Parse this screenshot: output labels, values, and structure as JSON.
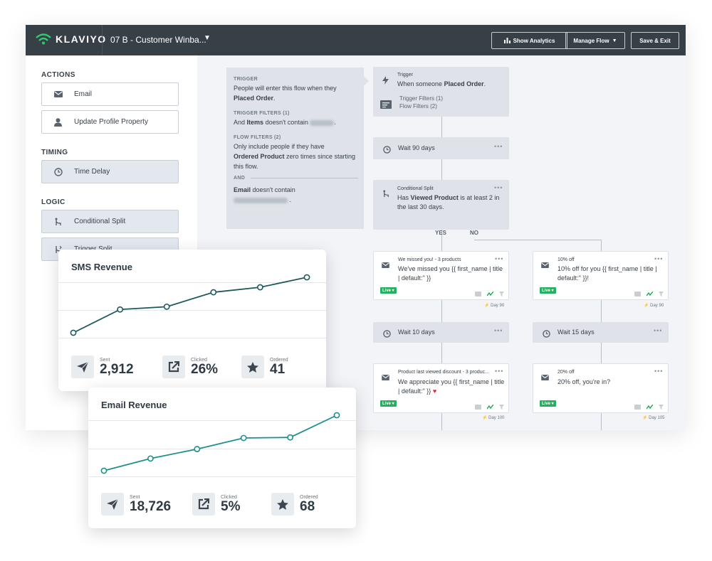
{
  "header": {
    "logo": "KLAVIYO",
    "flow_name": "07 B - Customer Winba...",
    "buttons": {
      "analytics": "Show Analytics",
      "manage": "Manage Flow",
      "save": "Save & Exit"
    }
  },
  "sidebar": {
    "actions_title": "ACTIONS",
    "timing_title": "TIMING",
    "logic_title": "LOGIC",
    "actions": [
      "Email",
      "Update Profile Property"
    ],
    "timing": [
      "Time Delay"
    ],
    "logic": [
      "Conditional Split",
      "Trigger Split"
    ]
  },
  "info_panel": {
    "trigger_heading": "TRIGGER",
    "trigger_text_1": "People will enter this flow when they",
    "trigger_text_bold": "Placed Order",
    "trigger_filters_heading": "TRIGGER FILTERS (1)",
    "trigger_filters_and": "And",
    "trigger_filters_bold": "Items",
    "trigger_filters_text": "doesn't contain",
    "flow_filters_heading": "FLOW FILTERS (2)",
    "flow_filters_text_1": "Only include people if they have",
    "flow_filters_bold": "Ordered Product",
    "flow_filters_text_2": "zero times since starting this flow.",
    "and_heading": "AND",
    "email_bold": "Email",
    "email_text": "doesn't contain"
  },
  "flow": {
    "trigger": {
      "label": "Trigger",
      "text": "When someone",
      "text_bold": "Placed Order",
      "filters_1": "Trigger Filters (1)",
      "filters_2": "Flow Filters (2)"
    },
    "wait_1": "Wait 90 days",
    "split": {
      "label": "Conditional Split",
      "text_1": "Has",
      "text_bold": "Viewed Product",
      "text_2": "is at least 2 in the last 30 days.",
      "yes": "YES",
      "no": "NO"
    },
    "email_left_1": {
      "title": "We missed you! - 3 products",
      "body": "We've missed you {{ first_name | title | default:'' }}",
      "status": "Live",
      "day": "Day 90"
    },
    "email_right_1": {
      "title": "10% off",
      "body": "10% off for you {{ first_name | title | default:'' }}!",
      "status": "Live",
      "day": "Day 90"
    },
    "wait_left": "Wait 10 days",
    "wait_right": "Wait 15 days",
    "email_left_2": {
      "title": "Product last viewed discount - 3 produc...",
      "body": "We appreciate you {{ first_name | title | default:'' }}",
      "status": "Live",
      "day": "Day 100"
    },
    "email_right_2": {
      "title": "20% off",
      "body": "20% off, you're in?",
      "status": "Live",
      "day": "Day 105"
    }
  },
  "sms_card": {
    "title": "SMS Revenue",
    "stats": [
      {
        "label": "Sent",
        "value": "2,912",
        "icon": "send-icon"
      },
      {
        "label": "Clicked",
        "value": "26%",
        "icon": "external-link-icon"
      },
      {
        "label": "Ordered",
        "value": "41",
        "icon": "star-icon"
      }
    ],
    "trend": [
      0,
      0.42,
      0.47,
      0.73,
      0.82,
      1.0
    ],
    "line_color": "#1d5a5e"
  },
  "email_card": {
    "title": "Email Revenue",
    "stats": [
      {
        "label": "Sent",
        "value": "18,726",
        "icon": "send-icon"
      },
      {
        "label": "Clicked",
        "value": "5%",
        "icon": "external-link-icon"
      },
      {
        "label": "Ordered",
        "value": "68",
        "icon": "star-icon"
      }
    ],
    "trend": [
      0,
      0.22,
      0.39,
      0.59,
      0.6,
      1.0
    ],
    "line_color": "#1f8f8e"
  },
  "colors": {
    "topbar": "#373f47",
    "live": "#27ae60",
    "accent_green": "#2ecc71"
  }
}
